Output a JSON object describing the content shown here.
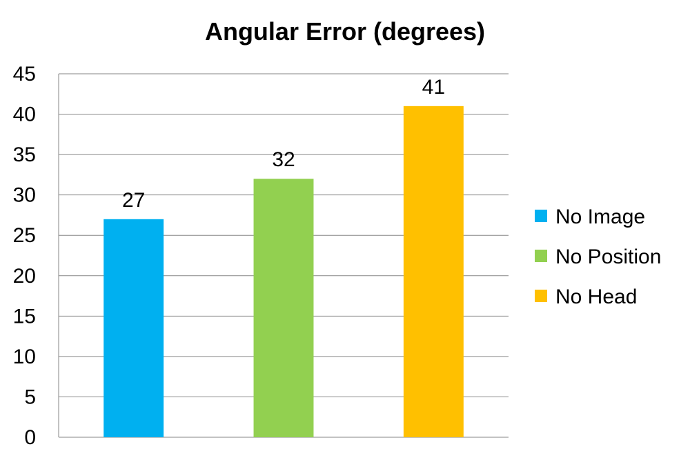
{
  "chart_data": {
    "type": "bar",
    "title": "Angular Error (degrees)",
    "xlabel": "",
    "ylabel": "",
    "ylim": [
      0,
      45
    ],
    "yticks": [
      0,
      5,
      10,
      15,
      20,
      25,
      30,
      35,
      40,
      45
    ],
    "grid": true,
    "legend_position": "right",
    "categories": [
      "No Image",
      "No Position",
      "No Head"
    ],
    "values": [
      27,
      32,
      41
    ],
    "colors": [
      "#00b0f0",
      "#92d050",
      "#ffc000"
    ],
    "data_labels": [
      "27",
      "32",
      "41"
    ]
  }
}
